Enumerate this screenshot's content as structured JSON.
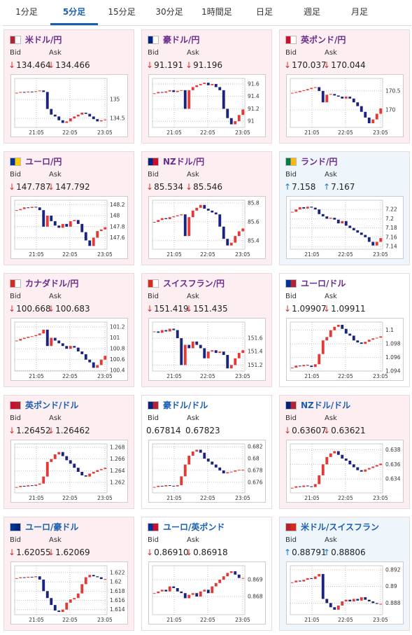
{
  "tabs": [
    "1分足",
    "5分足",
    "15分足",
    "30分足",
    "1時間足",
    "日足",
    "週足",
    "月足"
  ],
  "active_tab": 1,
  "labels": {
    "bid": "Bid",
    "ask": "Ask"
  },
  "chart_x_labels": [
    "21:05",
    "22:05",
    "23:05"
  ],
  "up_color": "#e53935",
  "down_color": "#1a237e",
  "panels": [
    {
      "name": "米ドル/円",
      "name_color": "#6a2c8f",
      "bg": "#fdeff1",
      "bid_arrow": "↓",
      "bid": "134.464",
      "ask_arrow": "↓",
      "ask": "134.466",
      "trend_color": "#d32f2f",
      "chart": {
        "type": "candlestick",
        "ylim": [
          134.26,
          135.56
        ],
        "yticks": [
          135,
          134.5
        ],
        "values": [
          135.18,
          135.2,
          135.19,
          135.21,
          135.2,
          135.22,
          135.24,
          135.2,
          134.75,
          134.6,
          134.55,
          134.45,
          134.38,
          134.42,
          134.5,
          134.55,
          134.6,
          134.65,
          134.62,
          134.55,
          134.48,
          134.42,
          134.45,
          134.47
        ]
      }
    },
    {
      "name": "豪ドル/円",
      "name_color": "#6a2c8f",
      "bg": "#fdeff1",
      "bid_arrow": "↓",
      "bid": "91.191",
      "ask_arrow": "↓",
      "ask": "91.196",
      "trend_color": "#d32f2f",
      "chart": {
        "type": "candlestick",
        "ylim": [
          90.9,
          91.69
        ],
        "yticks": [
          91.6,
          91.4,
          91.2,
          91
        ],
        "values": [
          91.45,
          91.47,
          91.46,
          91.48,
          91.5,
          91.47,
          91.49,
          91.5,
          91.2,
          91.5,
          91.55,
          91.58,
          91.6,
          91.62,
          91.58,
          91.6,
          91.55,
          91.5,
          91.2,
          91.05,
          90.95,
          91.0,
          91.1,
          91.19
        ]
      }
    },
    {
      "name": "英ポンド/円",
      "name_color": "#6a2c8f",
      "bg": "#fdeff1",
      "bid_arrow": "↓",
      "bid": "170.037",
      "ask_arrow": "↓",
      "ask": "170.044",
      "trend_color": "#d32f2f",
      "chart": {
        "type": "candlestick",
        "ylim": [
          169.54,
          170.83
        ],
        "yticks": [
          170.5,
          170
        ],
        "values": [
          170.45,
          170.47,
          170.5,
          170.52,
          170.55,
          170.58,
          170.6,
          170.5,
          170.2,
          170.4,
          170.42,
          170.38,
          170.35,
          170.3,
          170.35,
          170.3,
          170.2,
          170.1,
          169.95,
          169.8,
          169.65,
          169.75,
          169.9,
          170.04
        ]
      }
    },
    {
      "name": "ユーロ/円",
      "name_color": "#6a2c8f",
      "bg": "#fdeff1",
      "bid_arrow": "↓",
      "bid": "147.787",
      "ask_arrow": "↓",
      "ask": "147.792",
      "trend_color": "#d32f2f",
      "chart": {
        "type": "candlestick",
        "ylim": [
          147.39,
          148.28
        ],
        "yticks": [
          148.2,
          148,
          147.8,
          147.6
        ],
        "values": [
          148.1,
          148.12,
          148.15,
          148.14,
          148.16,
          148.15,
          148.1,
          147.8,
          148.0,
          147.9,
          147.82,
          147.78,
          147.85,
          147.8,
          147.9,
          147.92,
          147.85,
          147.7,
          147.55,
          147.45,
          147.6,
          147.72,
          147.75,
          147.79
        ]
      }
    },
    {
      "name": "NZドル/円",
      "name_color": "#6a2c8f",
      "bg": "#fdeff1",
      "bid_arrow": "↓",
      "bid": "85.534",
      "ask_arrow": "↓",
      "ask": "85.546",
      "trend_color": "#d32f2f",
      "chart": {
        "type": "candlestick",
        "ylim": [
          85.31,
          85.83
        ],
        "yticks": [
          85.8,
          85.6,
          85.4
        ],
        "values": [
          85.6,
          85.62,
          85.64,
          85.63,
          85.65,
          85.66,
          85.67,
          85.68,
          85.45,
          85.65,
          85.72,
          85.75,
          85.78,
          85.74,
          85.72,
          85.7,
          85.68,
          85.55,
          85.42,
          85.35,
          85.38,
          85.45,
          85.5,
          85.53
        ]
      }
    },
    {
      "name": "ランド/円",
      "name_color": "#6a2c8f",
      "bg": "#eef5fb",
      "bid_arrow": "↑",
      "bid": "7.158",
      "ask_arrow": "↑",
      "ask": "7.167",
      "trend_color": "#1976d2",
      "chart": {
        "type": "candlestick",
        "ylim": [
          7.134,
          7.24
        ],
        "yticks": [
          7.22,
          7.2,
          7.18,
          7.16,
          7.14
        ],
        "values": [
          7.215,
          7.22,
          7.225,
          7.222,
          7.226,
          7.224,
          7.22,
          7.21,
          7.205,
          7.2,
          7.202,
          7.198,
          7.19,
          7.195,
          7.185,
          7.18,
          7.175,
          7.17,
          7.165,
          7.16,
          7.15,
          7.142,
          7.15,
          7.158
        ]
      }
    },
    {
      "name": "カナダドル/円",
      "name_color": "#6a2c8f",
      "bg": "#fdeff1",
      "bid_arrow": "↓",
      "bid": "100.668",
      "ask_arrow": "↓",
      "ask": "100.683",
      "trend_color": "#d32f2f",
      "chart": {
        "type": "candlestick",
        "ylim": [
          100.39,
          101.29
        ],
        "yticks": [
          101.2,
          101,
          100.8,
          100.6,
          100.4
        ],
        "values": [
          100.95,
          100.98,
          101.0,
          101.02,
          101.03,
          101.05,
          101.08,
          101.15,
          100.85,
          101.0,
          100.95,
          100.9,
          100.85,
          100.8,
          100.85,
          100.82,
          100.75,
          100.7,
          100.6,
          100.55,
          100.45,
          100.5,
          100.6,
          100.67
        ]
      }
    },
    {
      "name": "スイスフラン/円",
      "name_color": "#6a2c8f",
      "bg": "#fdeff1",
      "bid_arrow": "↓",
      "bid": "151.419",
      "ask_arrow": "↓",
      "ask": "151.435",
      "trend_color": "#d32f2f",
      "chart": {
        "type": "candlestick",
        "ylim": [
          151.11,
          151.84
        ],
        "yticks": [
          151.6,
          151.4,
          151.2
        ],
        "values": [
          151.7,
          151.68,
          151.72,
          151.7,
          151.74,
          151.72,
          151.6,
          151.2,
          151.5,
          151.45,
          151.55,
          151.5,
          151.45,
          151.3,
          151.4,
          151.42,
          151.38,
          151.4,
          151.35,
          151.15,
          151.2,
          151.3,
          151.38,
          151.42
        ]
      }
    },
    {
      "name": "ユーロ/ドル",
      "name_color": "#6a2c8f",
      "bg": "#ffffff",
      "bid_arrow": "↓",
      "bid": "1.09907",
      "ask_arrow": "↓",
      "ask": "1.09911",
      "trend_color": "#d32f2f",
      "chart": {
        "type": "candlestick",
        "ylim": [
          1.094,
          1.1012
        ],
        "yticks": [
          1.1,
          1.098,
          1.096,
          1.094
        ],
        "values": [
          1.0945,
          1.0948,
          1.0947,
          1.0949,
          1.0948,
          1.0946,
          1.095,
          1.0965,
          1.0985,
          1.099,
          1.1,
          1.1005,
          1.1008,
          1.1002,
          1.0995,
          1.0992,
          1.0985,
          1.0982,
          1.098,
          1.0983,
          1.0986,
          1.0988,
          1.0989,
          1.0991
        ]
      }
    },
    {
      "name": "英ポンド/ドル",
      "name_color": "#1a5fb4",
      "bg": "#fdeff1",
      "bid_arrow": "↓",
      "bid": "1.26452",
      "ask_arrow": "↓",
      "ask": "1.26462",
      "trend_color": "#d32f2f",
      "chart": {
        "type": "candlestick",
        "ylim": [
          1.2602,
          1.2686
        ],
        "yticks": [
          1.268,
          1.266,
          1.264,
          1.262
        ],
        "values": [
          1.2612,
          1.2614,
          1.2613,
          1.2615,
          1.2614,
          1.2616,
          1.2618,
          1.263,
          1.2655,
          1.266,
          1.2668,
          1.2672,
          1.2665,
          1.2658,
          1.2652,
          1.2645,
          1.2638,
          1.2632,
          1.263,
          1.2635,
          1.2638,
          1.2641,
          1.2643,
          1.2645
        ]
      }
    },
    {
      "name": "豪ドル/ドル",
      "name_color": "#1a5fb4",
      "bg": "#ffffff",
      "bid": "0.67814",
      "ask": "0.67823",
      "trend_color": "#333333",
      "chart": {
        "type": "candlestick",
        "ylim": [
          0.6742,
          0.6825
        ],
        "yticks": [
          0.682,
          0.68,
          0.678,
          0.676
        ],
        "values": [
          0.6752,
          0.6754,
          0.6753,
          0.6755,
          0.6754,
          0.6753,
          0.6755,
          0.677,
          0.679,
          0.6805,
          0.6812,
          0.6815,
          0.681,
          0.68,
          0.6795,
          0.679,
          0.6785,
          0.678,
          0.6775,
          0.6777,
          0.6778,
          0.678,
          0.6781,
          0.6781
        ]
      }
    },
    {
      "name": "NZドル/ドル",
      "name_color": "#1a5fb4",
      "bg": "#fdeff1",
      "bid_arrow": "↓",
      "bid": "0.63607",
      "ask_arrow": "↓",
      "ask": "0.63621",
      "trend_color": "#d32f2f",
      "chart": {
        "type": "candlestick",
        "ylim": [
          0.6321,
          0.6388
        ],
        "yticks": [
          0.638,
          0.636,
          0.634
        ],
        "values": [
          0.6328,
          0.633,
          0.6329,
          0.6331,
          0.633,
          0.6329,
          0.6333,
          0.6345,
          0.636,
          0.637,
          0.6375,
          0.6378,
          0.6373,
          0.6368,
          0.6365,
          0.636,
          0.6356,
          0.6352,
          0.635,
          0.6353,
          0.6355,
          0.6357,
          0.6359,
          0.6361
        ]
      }
    },
    {
      "name": "ユーロ/豪ドル",
      "name_color": "#1a5fb4",
      "bg": "#fdeff1",
      "bid_arrow": "↓",
      "bid": "1.62055",
      "ask_arrow": "↓",
      "ask": "1.62069",
      "trend_color": "#d32f2f",
      "chart": {
        "type": "candlestick",
        "ylim": [
          1.6129,
          1.6235
        ],
        "yticks": [
          1.622,
          1.62,
          1.618,
          1.616,
          1.614
        ],
        "values": [
          1.6208,
          1.621,
          1.6209,
          1.6211,
          1.621,
          1.6212,
          1.6205,
          1.618,
          1.6165,
          1.615,
          1.6138,
          1.6135,
          1.614,
          1.6155,
          1.6162,
          1.6165,
          1.6175,
          1.6195,
          1.621,
          1.6215,
          1.6212,
          1.621,
          1.6206,
          1.6206
        ]
      }
    },
    {
      "name": "ユーロ/英ポンド",
      "name_color": "#1a5fb4",
      "bg": "#ffffff",
      "bid_arrow": "↓",
      "bid": "0.86910",
      "ask_arrow": "↓",
      "ask": "0.86918",
      "trend_color": "#d32f2f",
      "chart": {
        "type": "candlestick",
        "ylim": [
          0.86692,
          0.86983
        ],
        "yticks": [
          0.869,
          0.868
        ],
        "values": [
          0.8682,
          0.8683,
          0.8684,
          0.8683,
          0.8686,
          0.8685,
          0.8683,
          0.8682,
          0.8679,
          0.8681,
          0.8682,
          0.868,
          0.8683,
          0.8684,
          0.8682,
          0.8686,
          0.8688,
          0.869,
          0.8692,
          0.8694,
          0.8695,
          0.8693,
          0.8691,
          0.8691
        ]
      }
    },
    {
      "name": "米ドル/スイスフラン",
      "name_color": "#1a5fb4",
      "bg": "#eef5fb",
      "bid_arrow": "↑",
      "bid": "0.88791",
      "ask_arrow": "↑",
      "ask": "0.88806",
      "trend_color": "#1976d2",
      "chart": {
        "type": "candlestick",
        "ylim": [
          0.8866,
          0.8925
        ],
        "yticks": [
          0.892,
          0.89,
          0.888
        ],
        "values": [
          0.8905,
          0.8907,
          0.8906,
          0.8908,
          0.891,
          0.8909,
          0.8912,
          0.8915,
          0.8885,
          0.888,
          0.8875,
          0.8872,
          0.8877,
          0.8882,
          0.8884,
          0.8882,
          0.8885,
          0.8883,
          0.8887,
          0.8884,
          0.8882,
          0.888,
          0.8879,
          0.8879
        ]
      }
    }
  ]
}
